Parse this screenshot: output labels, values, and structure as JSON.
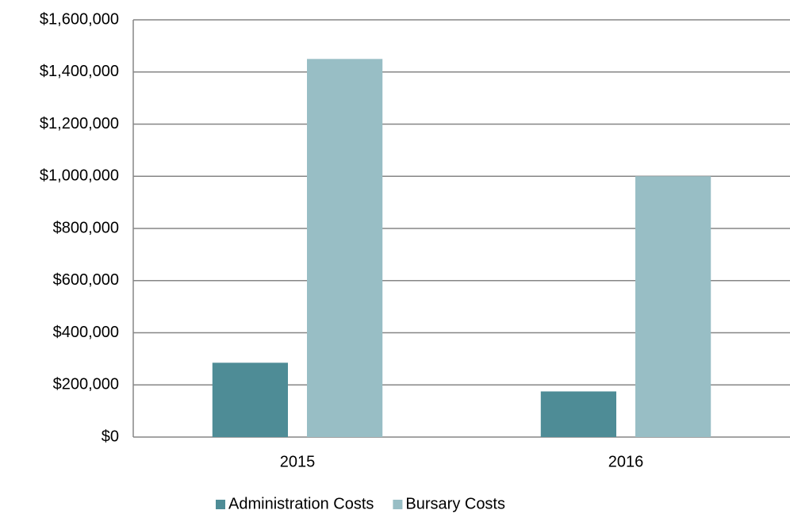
{
  "chart_data": {
    "type": "bar",
    "categories": [
      "2015",
      "2016"
    ],
    "series": [
      {
        "name": "Administration Costs",
        "color": "#4e8c96",
        "values": [
          285000,
          175000
        ]
      },
      {
        "name": "Bursary Costs",
        "color": "#98bec5",
        "values": [
          1450000,
          1000000
        ]
      }
    ],
    "ylim": [
      0,
      1600000
    ],
    "yticks": [
      {
        "value": 0,
        "label": "$0"
      },
      {
        "value": 200000,
        "label": "$200,000"
      },
      {
        "value": 400000,
        "label": "$400,000"
      },
      {
        "value": 600000,
        "label": "$600,000"
      },
      {
        "value": 800000,
        "label": "$800,000"
      },
      {
        "value": 1000000,
        "label": "$1,000,000"
      },
      {
        "value": 1200000,
        "label": "$1,200,000"
      },
      {
        "value": 1400000,
        "label": "$1,400,000"
      },
      {
        "value": 1600000,
        "label": "$1,600,000"
      }
    ],
    "grid": true,
    "legend": "bottom"
  }
}
